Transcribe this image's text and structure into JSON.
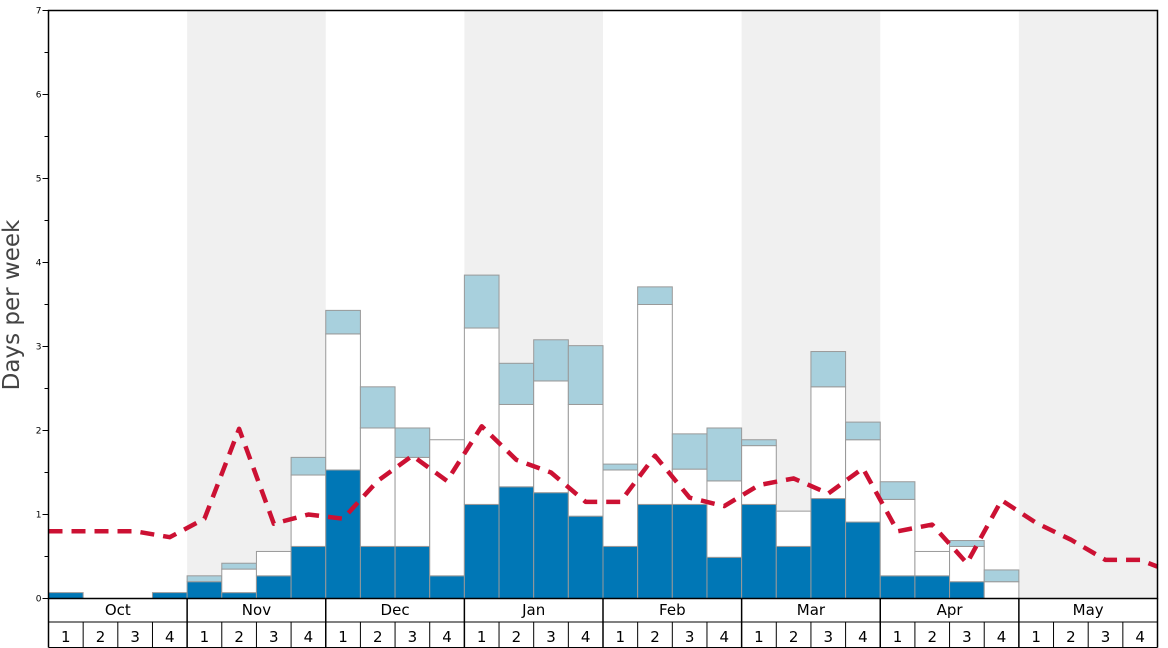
{
  "chart_data": {
    "type": "bar",
    "ylabel": "Days per week",
    "ylim": [
      0,
      7
    ],
    "yticks": [
      "0",
      "1",
      "2",
      "3",
      "4",
      "5",
      "6",
      "7"
    ],
    "months": [
      "Oct",
      "Nov",
      "Dec",
      "Jan",
      "Feb",
      "Mar",
      "Apr",
      "May"
    ],
    "weeks": [
      "1",
      "2",
      "3",
      "4"
    ],
    "stacked": true,
    "series": [
      {
        "color": "#0077b6",
        "values": [
          0.07,
          0,
          0,
          0.07,
          0.2,
          0.07,
          0.27,
          0.62,
          1.53,
          0.62,
          0.62,
          0.27,
          1.12,
          1.33,
          1.26,
          0.98,
          0.62,
          1.12,
          1.12,
          0.49,
          1.12,
          0.62,
          1.19,
          0.91,
          0.27,
          0.27,
          0.2,
          0,
          0,
          0,
          0,
          0
        ]
      },
      {
        "color": "#ffffff",
        "values": [
          0,
          0,
          0,
          0,
          0,
          0.28,
          0.29,
          0.85,
          1.62,
          1.41,
          1.06,
          1.62,
          2.1,
          0.98,
          1.33,
          1.33,
          0.91,
          2.38,
          0.42,
          0.91,
          0.7,
          0.42,
          1.33,
          0.98,
          0.91,
          0.29,
          0.42,
          0.2,
          0,
          0,
          0,
          0
        ]
      },
      {
        "color": "#a8d0dd",
        "values": [
          0,
          0,
          0,
          0,
          0.07,
          0.07,
          0,
          0.21,
          0.28,
          0.49,
          0.35,
          0,
          0.63,
          0.49,
          0.49,
          0.7,
          0.07,
          0.21,
          0.42,
          0.63,
          0.07,
          0,
          0.42,
          0.21,
          0.21,
          0,
          0.07,
          0.14,
          0,
          0,
          0,
          0
        ]
      },
      {
        "type": "line",
        "color": "#cc1133",
        "style": "dashed",
        "values": [
          0.8,
          0.8,
          0.8,
          0.73,
          0.95,
          2.02,
          0.89,
          1.0,
          0.95,
          1.4,
          1.7,
          1.4,
          2.05,
          1.65,
          1.5,
          1.15,
          1.15,
          1.7,
          1.2,
          1.1,
          1.35,
          1.43,
          1.25,
          1.55,
          0.8,
          0.88,
          0.42,
          1.17,
          0.9,
          0.7,
          0.46,
          0.46
        ]
      }
    ],
    "x_extra": {
      "line_last_value": 0.38
    },
    "shading": {
      "alternating_months": [
        "Nov",
        "Jan",
        "Mar",
        "May"
      ],
      "color": "#f0f0f0"
    },
    "grid": false
  }
}
